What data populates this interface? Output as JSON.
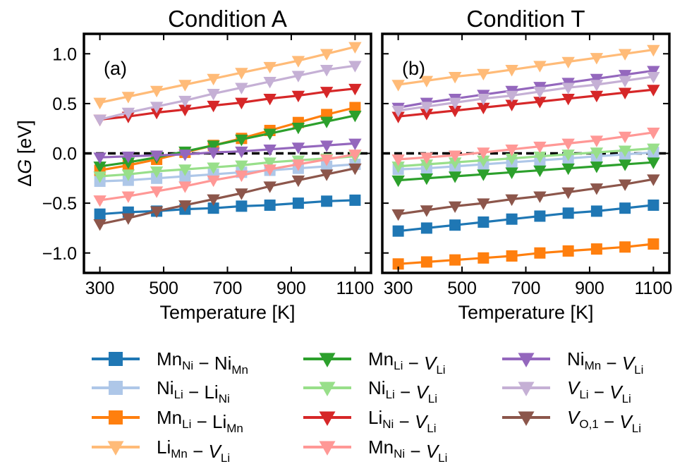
{
  "chart_data": {
    "type": "line",
    "x": [
      300,
      389,
      478,
      567,
      656,
      744,
      833,
      922,
      1011,
      1100
    ],
    "ylabel": "ΔG [eV]",
    "ylim": [
      -1.2,
      1.2
    ],
    "yticks": [
      -1.0,
      -0.5,
      0.0,
      0.5,
      1.0
    ],
    "ytick_labels": [
      "−1.0",
      "−0.5",
      "0.0",
      "0.5",
      "1.0"
    ],
    "xlim": [
      250,
      1150
    ],
    "xticks": [
      300,
      500,
      700,
      900,
      1100
    ],
    "xtick_labels": [
      "300",
      "500",
      "700",
      "900",
      "1100"
    ],
    "reference_line": 0,
    "panels": [
      {
        "title": "Condition A",
        "label": "(a)",
        "xlabel": "Temperature [K]",
        "series": [
          {
            "key": "s1",
            "values": [
              -0.61,
              -0.59,
              -0.58,
              -0.56,
              -0.55,
              -0.53,
              -0.52,
              -0.5,
              -0.48,
              -0.47
            ]
          },
          {
            "key": "s2",
            "values": [
              -0.28,
              -0.27,
              -0.25,
              -0.23,
              -0.21,
              -0.19,
              -0.17,
              -0.15,
              -0.13,
              -0.11
            ]
          },
          {
            "key": "s3",
            "values": [
              -0.17,
              -0.12,
              -0.06,
              0.01,
              0.08,
              0.15,
              0.23,
              0.31,
              0.39,
              0.46
            ]
          },
          {
            "key": "s4",
            "values": [
              0.51,
              0.57,
              0.63,
              0.69,
              0.75,
              0.81,
              0.87,
              0.93,
              1.0,
              1.07
            ]
          },
          {
            "key": "s5",
            "values": [
              -0.13,
              -0.09,
              -0.04,
              0.02,
              0.08,
              0.14,
              0.2,
              0.26,
              0.32,
              0.38
            ]
          },
          {
            "key": "s6",
            "values": [
              -0.23,
              -0.21,
              -0.18,
              -0.16,
              -0.14,
              -0.12,
              -0.09,
              -0.07,
              -0.05,
              -0.03
            ]
          },
          {
            "key": "s7",
            "values": [
              0.34,
              0.37,
              0.41,
              0.44,
              0.48,
              0.51,
              0.55,
              0.58,
              0.62,
              0.65
            ]
          },
          {
            "key": "s8",
            "values": [
              -0.47,
              -0.43,
              -0.38,
              -0.33,
              -0.27,
              -0.22,
              -0.16,
              -0.11,
              -0.06,
              -0.01
            ]
          },
          {
            "key": "s9",
            "values": [
              -0.04,
              -0.03,
              -0.02,
              -0.01,
              0.01,
              0.02,
              0.04,
              0.06,
              0.08,
              0.1
            ]
          },
          {
            "key": "s10",
            "values": [
              0.34,
              0.41,
              0.47,
              0.53,
              0.6,
              0.66,
              0.72,
              0.78,
              0.84,
              0.88
            ]
          },
          {
            "key": "s11",
            "values": [
              -0.71,
              -0.65,
              -0.58,
              -0.52,
              -0.46,
              -0.4,
              -0.33,
              -0.27,
              -0.21,
              -0.15
            ]
          }
        ]
      },
      {
        "title": "Condition T",
        "label": "(b)",
        "xlabel": "Temperature [K]",
        "series": [
          {
            "key": "s1",
            "values": [
              -0.78,
              -0.75,
              -0.72,
              -0.69,
              -0.66,
              -0.63,
              -0.6,
              -0.58,
              -0.55,
              -0.52
            ]
          },
          {
            "key": "s2",
            "values": [
              -0.16,
              -0.15,
              -0.13,
              -0.11,
              -0.09,
              -0.07,
              -0.05,
              -0.03,
              -0.01,
              0.01
            ]
          },
          {
            "key": "s3",
            "values": [
              -1.11,
              -1.09,
              -1.07,
              -1.05,
              -1.03,
              -1.0,
              -0.98,
              -0.96,
              -0.94,
              -0.91
            ]
          },
          {
            "key": "s4",
            "values": [
              0.69,
              0.73,
              0.77,
              0.8,
              0.84,
              0.88,
              0.92,
              0.96,
              1.0,
              1.04
            ]
          },
          {
            "key": "s5",
            "values": [
              -0.27,
              -0.25,
              -0.23,
              -0.21,
              -0.19,
              -0.17,
              -0.15,
              -0.13,
              -0.11,
              -0.09
            ]
          },
          {
            "key": "s6",
            "values": [
              -0.13,
              -0.11,
              -0.09,
              -0.07,
              -0.05,
              -0.03,
              -0.01,
              0.01,
              0.03,
              0.05
            ]
          },
          {
            "key": "s7",
            "values": [
              0.37,
              0.4,
              0.43,
              0.46,
              0.49,
              0.52,
              0.55,
              0.58,
              0.61,
              0.64
            ]
          },
          {
            "key": "s8",
            "values": [
              -0.06,
              -0.04,
              -0.02,
              0.01,
              0.04,
              0.07,
              0.1,
              0.13,
              0.17,
              0.21
            ]
          },
          {
            "key": "s9",
            "values": [
              0.46,
              0.51,
              0.55,
              0.59,
              0.63,
              0.67,
              0.71,
              0.75,
              0.79,
              0.83
            ]
          },
          {
            "key": "s10",
            "values": [
              0.43,
              0.47,
              0.51,
              0.55,
              0.58,
              0.62,
              0.66,
              0.69,
              0.73,
              0.77
            ]
          },
          {
            "key": "s11",
            "values": [
              -0.61,
              -0.57,
              -0.53,
              -0.5,
              -0.46,
              -0.43,
              -0.39,
              -0.35,
              -0.31,
              -0.26
            ]
          }
        ]
      }
    ],
    "legend": {
      "placement": "bottom",
      "columns": 3,
      "entries": [
        {
          "key": "s1",
          "color": "#1f77b4",
          "marker": "square",
          "parts": [
            {
              "t": "Mn"
            },
            {
              "t": "Ni",
              "sub": true
            },
            {
              "t": " − "
            },
            {
              "t": "Ni"
            },
            {
              "t": "Mn",
              "sub": true
            }
          ]
        },
        {
          "key": "s2",
          "color": "#aec7e8",
          "marker": "square",
          "parts": [
            {
              "t": "Ni"
            },
            {
              "t": "Li",
              "sub": true
            },
            {
              "t": " − "
            },
            {
              "t": "Li"
            },
            {
              "t": "Ni",
              "sub": true
            }
          ]
        },
        {
          "key": "s3",
          "color": "#ff7f0e",
          "marker": "square",
          "parts": [
            {
              "t": "Mn"
            },
            {
              "t": "Li",
              "sub": true
            },
            {
              "t": " − "
            },
            {
              "t": "Li"
            },
            {
              "t": "Mn",
              "sub": true
            }
          ]
        },
        {
          "key": "s4",
          "color": "#ffbb78",
          "marker": "triangle-down",
          "parts": [
            {
              "t": "Li"
            },
            {
              "t": "Mn",
              "sub": true
            },
            {
              "t": " − "
            },
            {
              "t": "V",
              "italic": true
            },
            {
              "t": "Li",
              "sub": true
            }
          ]
        },
        {
          "key": "s5",
          "color": "#2ca02c",
          "marker": "triangle-down",
          "parts": [
            {
              "t": "Mn"
            },
            {
              "t": "Li",
              "sub": true
            },
            {
              "t": " − "
            },
            {
              "t": "V",
              "italic": true
            },
            {
              "t": "Li",
              "sub": true
            }
          ]
        },
        {
          "key": "s6",
          "color": "#98df8a",
          "marker": "triangle-down",
          "parts": [
            {
              "t": "Ni"
            },
            {
              "t": "Li",
              "sub": true
            },
            {
              "t": " − "
            },
            {
              "t": "V",
              "italic": true
            },
            {
              "t": "Li",
              "sub": true
            }
          ]
        },
        {
          "key": "s7",
          "color": "#d62728",
          "marker": "triangle-down",
          "parts": [
            {
              "t": "Li"
            },
            {
              "t": "Ni",
              "sub": true
            },
            {
              "t": " − "
            },
            {
              "t": "V",
              "italic": true
            },
            {
              "t": "Li",
              "sub": true
            }
          ]
        },
        {
          "key": "s8",
          "color": "#ff9896",
          "marker": "triangle-down",
          "parts": [
            {
              "t": "Mn"
            },
            {
              "t": "Ni",
              "sub": true
            },
            {
              "t": " − "
            },
            {
              "t": "V",
              "italic": true
            },
            {
              "t": "Li",
              "sub": true
            }
          ]
        },
        {
          "key": "s9",
          "color": "#9467bd",
          "marker": "triangle-down",
          "parts": [
            {
              "t": "Ni"
            },
            {
              "t": "Mn",
              "sub": true
            },
            {
              "t": " − "
            },
            {
              "t": "V",
              "italic": true
            },
            {
              "t": "Li",
              "sub": true
            }
          ]
        },
        {
          "key": "s10",
          "color": "#c5b0d5",
          "marker": "triangle-down",
          "parts": [
            {
              "t": "V",
              "italic": true
            },
            {
              "t": "Li",
              "sub": true
            },
            {
              "t": " − "
            },
            {
              "t": "V",
              "italic": true
            },
            {
              "t": "Li",
              "sub": true
            }
          ]
        },
        {
          "key": "s11",
          "color": "#8c564b",
          "marker": "triangle-down",
          "parts": [
            {
              "t": "V",
              "italic": true
            },
            {
              "t": "O,1",
              "sub": true
            },
            {
              "t": " − "
            },
            {
              "t": "V",
              "italic": true
            },
            {
              "t": "Li",
              "sub": true
            }
          ]
        }
      ]
    }
  }
}
